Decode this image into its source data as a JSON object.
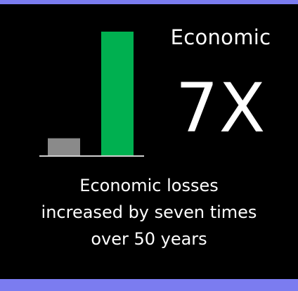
{
  "colors": {
    "background": "#000000",
    "accent_band": "#7b7cf0",
    "before_bar": "#8a8a8a",
    "after_bar": "#00b050",
    "baseline": "#cfcfcf"
  },
  "heading": "Economic",
  "multiplier": "7X",
  "caption_lines": [
    "Economic losses",
    "increased by seven times",
    "over 50 years"
  ],
  "chart_data": {
    "type": "bar",
    "categories": [
      "",
      ""
    ],
    "values": [
      1,
      7
    ],
    "title": "",
    "xlabel": "",
    "ylabel": "",
    "ylim": [
      0,
      7
    ],
    "grid": false,
    "legend": "none"
  }
}
